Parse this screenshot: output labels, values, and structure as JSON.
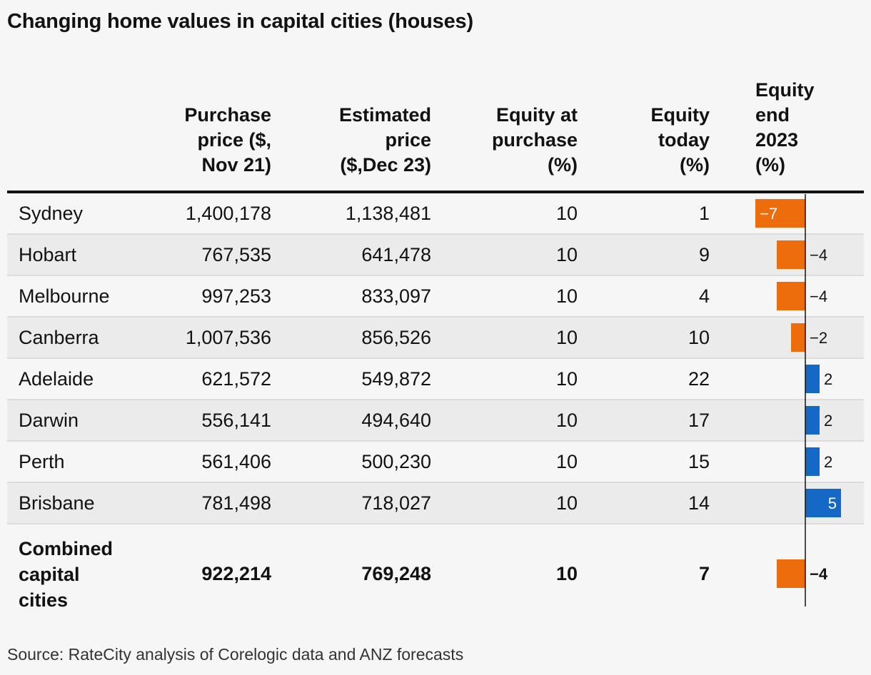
{
  "chart_data": {
    "type": "table",
    "title": "Changing home values in capital cities (houses)",
    "columns": [
      "Purchase\nprice ($,\nNov 21)",
      "Estimated\nprice\n($,Dec 23)",
      "Equity at\npurchase\n(%)",
      "Equity\ntoday\n(%)",
      "Equity\nend\n2023\n(%)"
    ],
    "rows": [
      {
        "city": "Sydney",
        "purchase": "1,400,178",
        "estimated": "1,138,481",
        "equity_purchase": "10",
        "equity_today": "1",
        "equity_end_2023": -7,
        "equity_end_label": "−7"
      },
      {
        "city": "Hobart",
        "purchase": "767,535",
        "estimated": "641,478",
        "equity_purchase": "10",
        "equity_today": "9",
        "equity_end_2023": -4,
        "equity_end_label": "−4"
      },
      {
        "city": "Melbourne",
        "purchase": "997,253",
        "estimated": "833,097",
        "equity_purchase": "10",
        "equity_today": "4",
        "equity_end_2023": -4,
        "equity_end_label": "−4"
      },
      {
        "city": "Canberra",
        "purchase": "1,007,536",
        "estimated": "856,526",
        "equity_purchase": "10",
        "equity_today": "10",
        "equity_end_2023": -2,
        "equity_end_label": "−2"
      },
      {
        "city": "Adelaide",
        "purchase": "621,572",
        "estimated": "549,872",
        "equity_purchase": "10",
        "equity_today": "22",
        "equity_end_2023": 2,
        "equity_end_label": "2"
      },
      {
        "city": "Darwin",
        "purchase": "556,141",
        "estimated": "494,640",
        "equity_purchase": "10",
        "equity_today": "17",
        "equity_end_2023": 2,
        "equity_end_label": "2"
      },
      {
        "city": "Perth",
        "purchase": "561,406",
        "estimated": "500,230",
        "equity_purchase": "10",
        "equity_today": "15",
        "equity_end_2023": 2,
        "equity_end_label": "2"
      },
      {
        "city": "Brisbane",
        "purchase": "781,498",
        "estimated": "718,027",
        "equity_purchase": "10",
        "equity_today": "14",
        "equity_end_2023": 5,
        "equity_end_label": "5"
      }
    ],
    "total": {
      "city": "Combined\ncapital\ncities",
      "purchase": "922,214",
      "estimated": "769,248",
      "equity_purchase": "10",
      "equity_today": "7",
      "equity_end_2023": -4,
      "equity_end_label": "−4"
    },
    "bar_colors": {
      "negative": "#ed6c0b",
      "positive": "#1469c7"
    },
    "source": "Source: RateCity analysis of Corelogic data and ANZ forecasts"
  }
}
